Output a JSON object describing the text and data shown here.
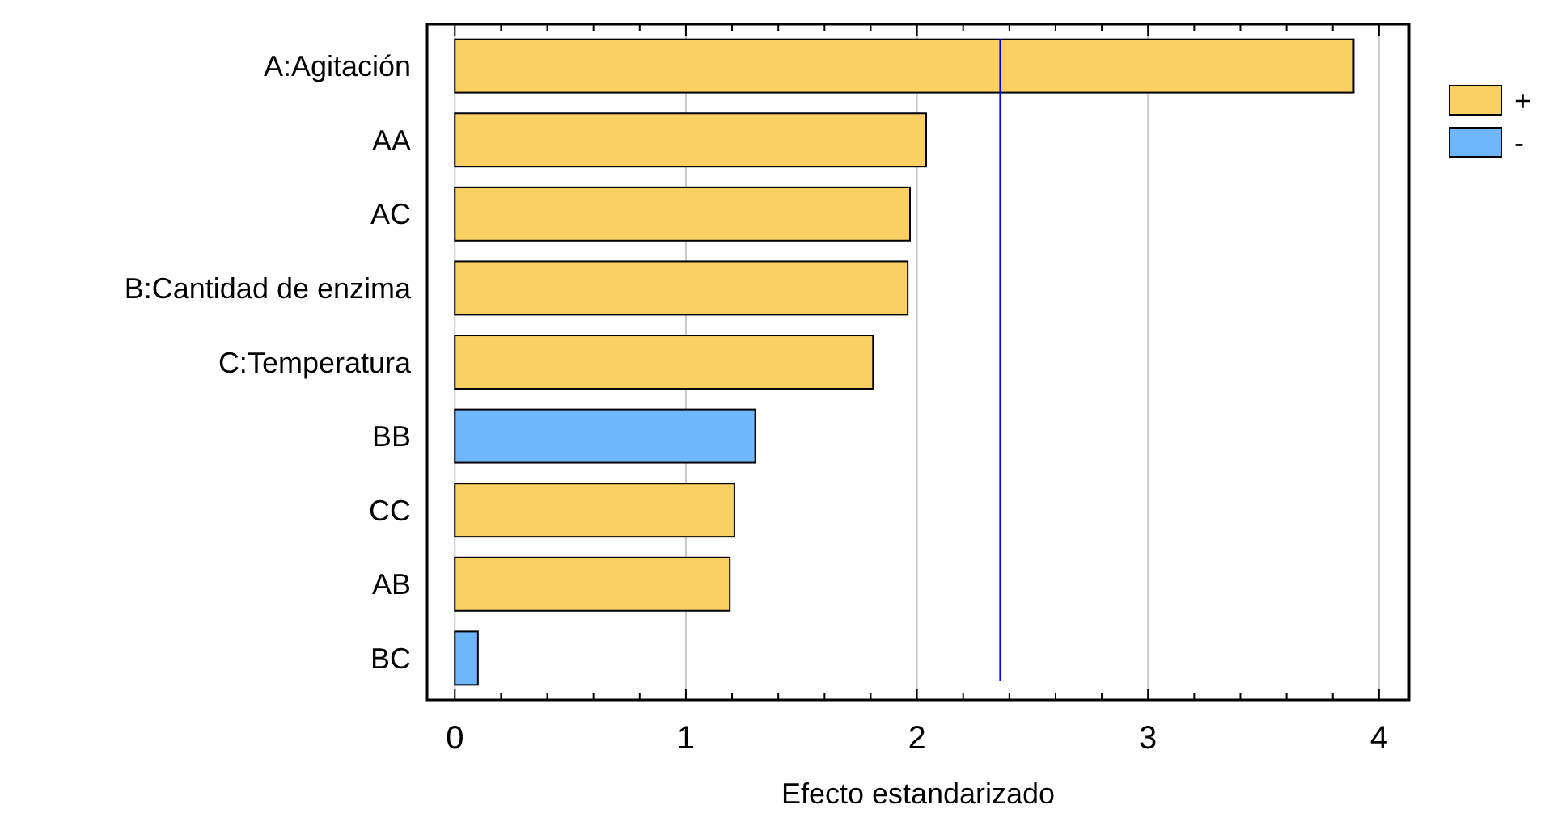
{
  "chart_data": {
    "type": "bar",
    "orientation": "horizontal",
    "xlabel": "Efecto estandarizado",
    "categories": [
      "A:Agitación",
      "AA",
      "AC",
      "B:Cantidad de enzima",
      "C:Temperatura",
      "BB",
      "CC",
      "AB",
      "BC"
    ],
    "series": [
      {
        "name": "+",
        "color": "#fbd063",
        "values": [
          3.89,
          2.04,
          1.97,
          1.96,
          1.81,
          null,
          1.21,
          1.19,
          null
        ]
      },
      {
        "name": "-",
        "color": "#6fb7fd",
        "values": [
          null,
          null,
          null,
          null,
          null,
          1.3,
          null,
          null,
          0.1
        ]
      }
    ],
    "xlim": [
      -0.12,
      4.13
    ],
    "xticks": [
      0,
      {
        "value": 0.2,
        "label": null
      },
      {
        "value": 0.4,
        "label": null
      },
      {
        "value": 0.6,
        "label": null
      },
      {
        "value": 0.8,
        "label": null
      },
      1,
      {
        "value": 1.2,
        "label": null
      },
      {
        "value": 1.4,
        "label": null
      },
      {
        "value": 1.6,
        "label": null
      },
      {
        "value": 1.8,
        "label": null
      },
      2,
      {
        "value": 2.2,
        "label": null
      },
      {
        "value": 2.4,
        "label": null
      },
      {
        "value": 2.6,
        "label": null
      },
      {
        "value": 2.8,
        "label": null
      },
      3,
      {
        "value": 3.2,
        "label": null
      },
      {
        "value": 3.4,
        "label": null
      },
      {
        "value": 3.6,
        "label": null
      },
      {
        "value": 3.8,
        "label": null
      },
      4
    ],
    "ref_lines": [
      {
        "axis": "x",
        "value": 2.36,
        "color": "#0000ff"
      }
    ],
    "grid": "x",
    "legend": "top right"
  }
}
